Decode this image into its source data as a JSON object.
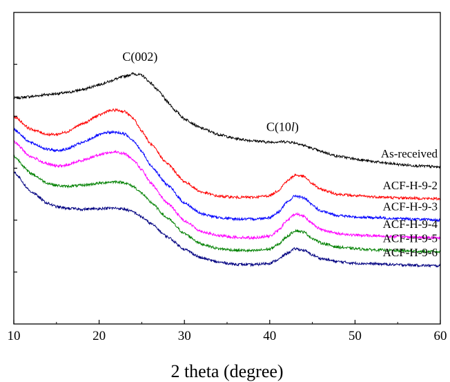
{
  "chart_data": {
    "type": "line",
    "title": "",
    "xlabel": "2 theta (degree)",
    "ylabel": "",
    "xlim": [
      10,
      60
    ],
    "xticks": [
      10,
      20,
      30,
      40,
      50,
      60
    ],
    "y_tick_labels_shown": false,
    "legend": "inline labels at right end of each curve",
    "grid": false,
    "annotations": [
      {
        "text": "C(002)",
        "x": 24.8,
        "y": 480
      },
      {
        "text": "C(10",
        "italic_part": "l",
        "text_end": ")",
        "x": 41.5,
        "y": 345
      }
    ],
    "ylim": [
      0,
      600
    ],
    "series": [
      {
        "name": "As-received",
        "color": "#000000",
        "x": [
          10,
          12,
          14,
          16,
          18,
          20,
          21,
          22,
          23,
          24,
          25,
          26,
          27,
          28,
          29,
          30,
          32,
          34,
          36,
          38,
          40,
          41,
          42,
          43,
          44,
          45,
          46,
          48,
          50,
          52,
          54,
          56,
          58,
          60
        ],
        "values": [
          435,
          438,
          442,
          445,
          451,
          461,
          466,
          472,
          477,
          482,
          479,
          465,
          448,
          428,
          410,
          395,
          377,
          365,
          357,
          353,
          350,
          351,
          351,
          349,
          344,
          338,
          332,
          323,
          318,
          313,
          309,
          306,
          304,
          302
        ]
      },
      {
        "name": "ACF-H-9-2",
        "color": "#ff0000",
        "x": [
          10,
          12,
          14,
          15,
          16,
          18,
          20,
          21,
          22,
          23,
          24,
          25,
          26,
          28,
          30,
          32,
          34,
          36,
          38,
          40,
          41,
          42,
          43,
          44,
          45,
          46,
          48,
          50,
          52,
          55,
          60
        ],
        "values": [
          400,
          375,
          365,
          365,
          369,
          385,
          402,
          410,
          412,
          409,
          396,
          372,
          347,
          309,
          274,
          254,
          246,
          244,
          244,
          247,
          257,
          275,
          287,
          284,
          270,
          259,
          250,
          247,
          245,
          243,
          241
        ]
      },
      {
        "name": "ACF-H-9-3",
        "color": "#0000ff",
        "x": [
          10,
          12,
          14,
          15,
          16,
          18,
          20,
          21,
          22,
          23,
          24,
          25,
          26,
          28,
          30,
          32,
          34,
          36,
          38,
          40,
          41,
          42,
          43,
          44,
          45,
          46,
          48,
          50,
          52,
          55,
          60
        ],
        "values": [
          375,
          349,
          336,
          334,
          336,
          349,
          364,
          369,
          369,
          366,
          354,
          332,
          306,
          268,
          233,
          212,
          205,
          202,
          202,
          205,
          215,
          234,
          247,
          243,
          229,
          217,
          209,
          206,
          205,
          203,
          200
        ]
      },
      {
        "name": "ACF-H-9-4",
        "color": "#ff00ff",
        "x": [
          10,
          12,
          14,
          15,
          16,
          18,
          20,
          21,
          22,
          23,
          24,
          25,
          26,
          28,
          30,
          32,
          34,
          36,
          38,
          40,
          41,
          42,
          43,
          44,
          45,
          46,
          48,
          50,
          52,
          55,
          60
        ],
        "values": [
          351,
          322,
          308,
          304,
          305,
          315,
          326,
          330,
          331,
          328,
          317,
          297,
          272,
          233,
          199,
          178,
          170,
          167,
          166,
          169,
          180,
          199,
          212,
          208,
          193,
          182,
          174,
          171,
          170,
          168,
          166
        ]
      },
      {
        "name": "ACF-H-9-5",
        "color": "#008000",
        "x": [
          10,
          12,
          14,
          15,
          16,
          18,
          20,
          21,
          22,
          23,
          24,
          25,
          26,
          28,
          30,
          32,
          34,
          36,
          38,
          40,
          41,
          42,
          43,
          44,
          45,
          46,
          48,
          50,
          52,
          55,
          60
        ],
        "values": [
          323,
          290,
          271,
          267,
          265,
          267,
          271,
          273,
          274,
          272,
          265,
          252,
          235,
          204,
          174,
          154,
          145,
          142,
          141,
          144,
          153,
          168,
          180,
          177,
          165,
          156,
          148,
          145,
          143,
          141,
          139
        ]
      },
      {
        "name": "ACF-H-9-6",
        "color": "#000080",
        "x": [
          10,
          12,
          14,
          15,
          16,
          18,
          20,
          21,
          22,
          23,
          24,
          25,
          26,
          28,
          30,
          32,
          34,
          36,
          38,
          40,
          41,
          42,
          43,
          44,
          45,
          46,
          48,
          50,
          52,
          55,
          60
        ],
        "values": [
          293,
          255,
          232,
          226,
          223,
          221,
          222,
          223,
          223,
          221,
          216,
          206,
          194,
          168,
          144,
          127,
          119,
          115,
          114,
          117,
          124,
          136,
          145,
          142,
          133,
          126,
          120,
          117,
          116,
          114,
          112
        ]
      }
    ]
  }
}
